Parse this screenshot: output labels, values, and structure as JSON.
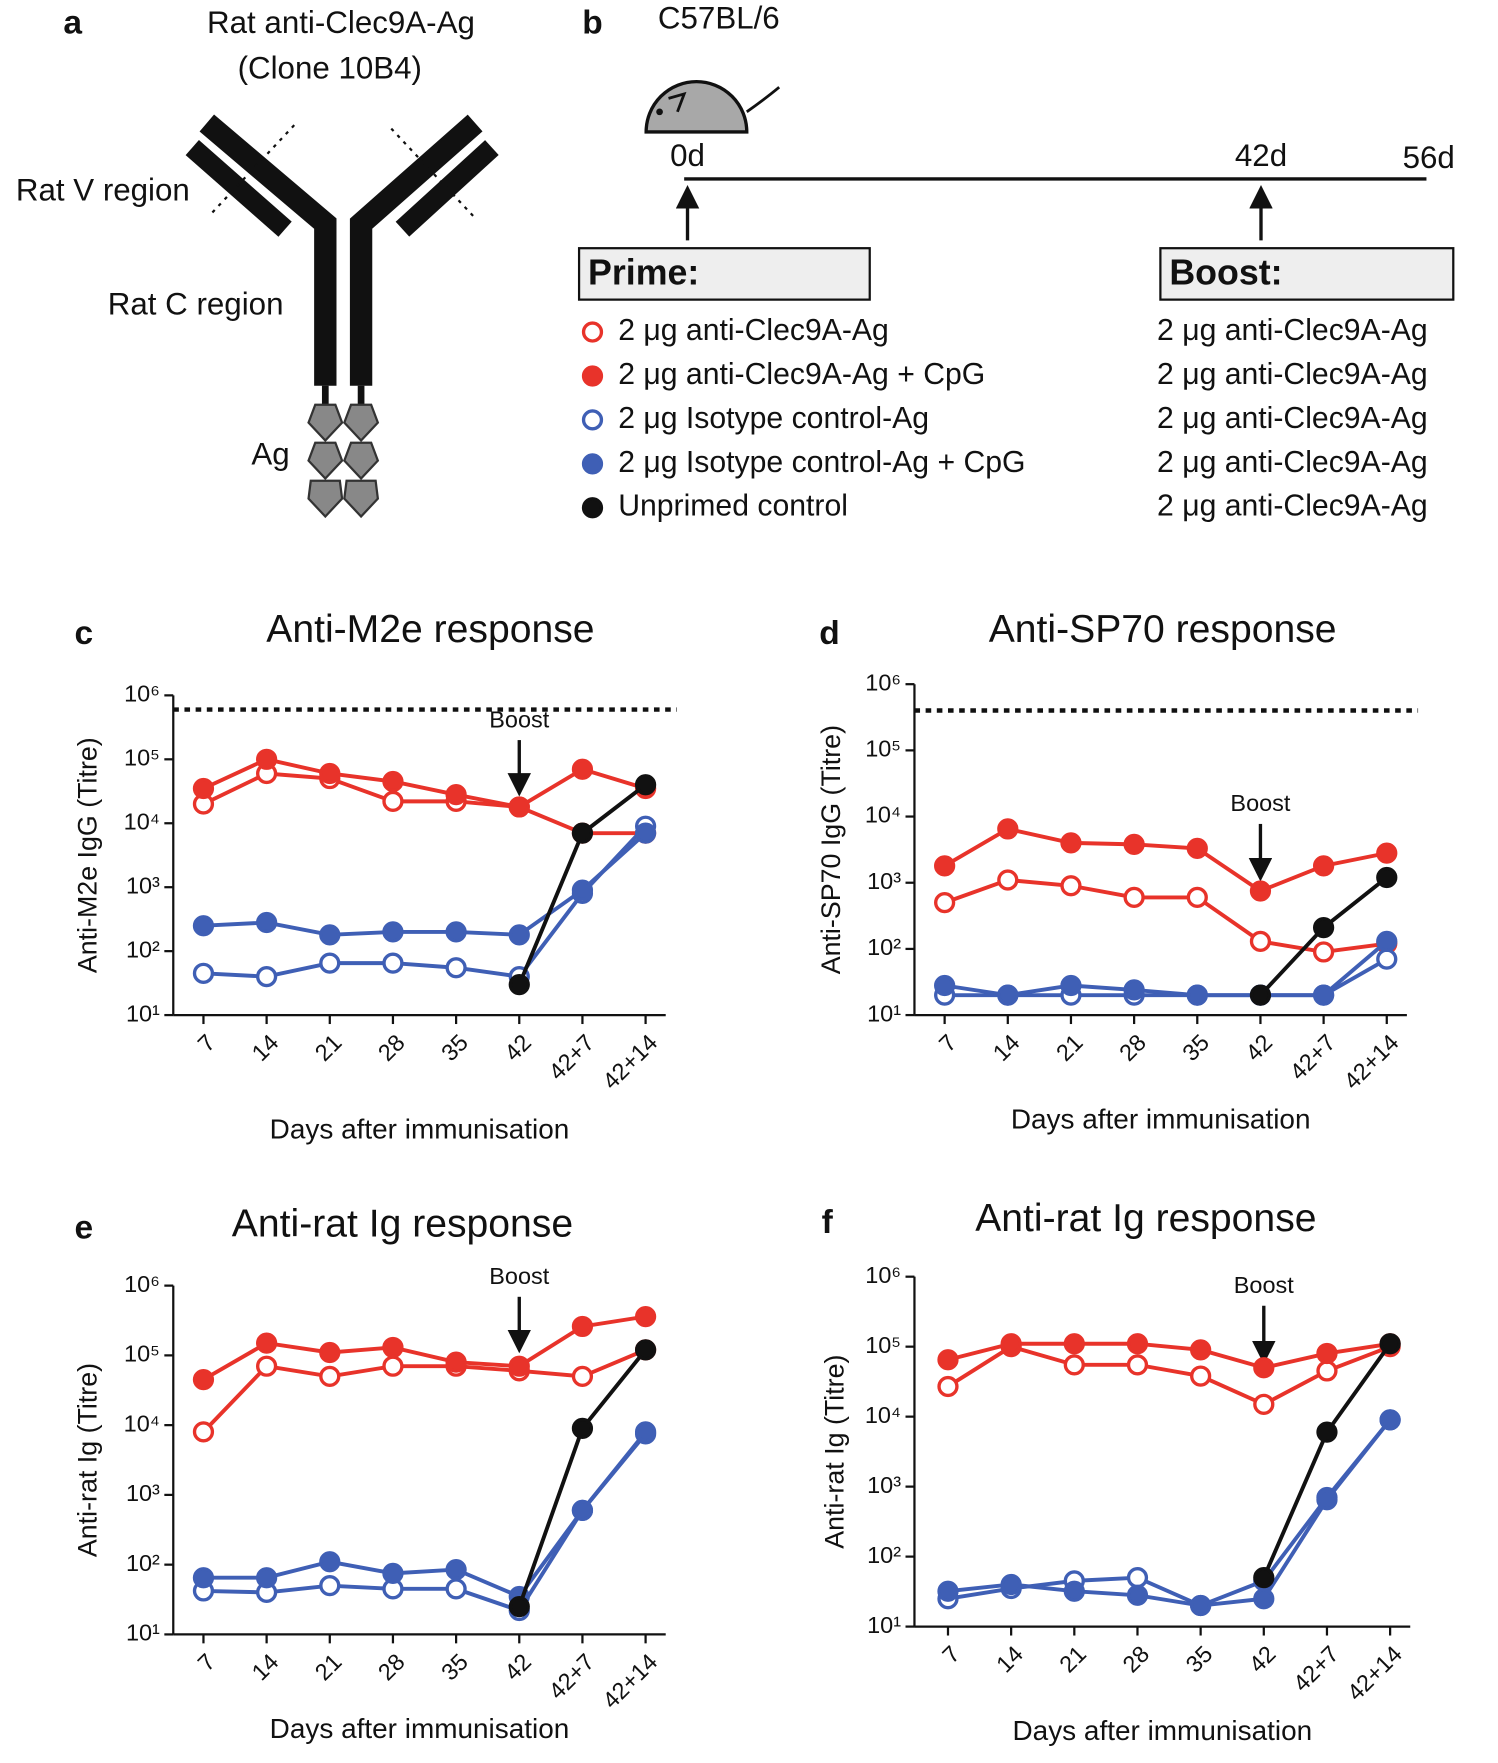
{
  "panel_a": {
    "label": "a",
    "title": "Rat anti-Clec9A-Ag",
    "subtitle": "(Clone 10B4)",
    "v_region": "Rat V region",
    "c_region": "Rat C region",
    "antigen": "Ag"
  },
  "panel_b": {
    "label": "b",
    "strain": "C57BL/6",
    "timepoints": [
      "0d",
      "42d",
      "56d"
    ],
    "prime": "Prime:",
    "boost": "Boost:",
    "legend": [
      {
        "name": "2 μg anti-Clec9A-Ag",
        "color": "#e8332a",
        "filled": false
      },
      {
        "name": "2 μg anti-Clec9A-Ag + CpG",
        "color": "#e8332a",
        "filled": true
      },
      {
        "name": "2 μg Isotype control-Ag",
        "color": "#3f5fb5",
        "filled": false
      },
      {
        "name": "2 μg Isotype control-Ag + CpG",
        "color": "#3f5fb5",
        "filled": true
      },
      {
        "name": "Unprimed control",
        "color": "#111111",
        "filled": true
      }
    ],
    "boost_items": [
      "2 μg anti-Clec9A-Ag",
      "2 μg anti-Clec9A-Ag",
      "2 μg anti-Clec9A-Ag",
      "2 μg anti-Clec9A-Ag",
      "2 μg anti-Clec9A-Ag"
    ]
  },
  "chart_data": [
    {
      "type": "line",
      "label": "c",
      "title": "Anti-M2e response",
      "xlabel": "Days after immunisation",
      "ylabel": "Anti-M2e IgG  (Titre)",
      "yscale": "log",
      "ylim": [
        10,
        1000000
      ],
      "yticks": [
        {
          "value": 10,
          "label": "10¹"
        },
        {
          "value": 100,
          "label": "10²"
        },
        {
          "value": 1000,
          "label": "10³"
        },
        {
          "value": 10000,
          "label": "10⁴"
        },
        {
          "value": 100000,
          "label": "10⁵"
        },
        {
          "value": 1000000,
          "label": "10⁶"
        }
      ],
      "categories": [
        "7",
        "14",
        "21",
        "28",
        "35",
        "42",
        "42+7",
        "42+14"
      ],
      "reference_line": 600000,
      "annotation": {
        "text": "Boost",
        "x": "42"
      },
      "series": [
        {
          "color": "#e8332a",
          "filled": false,
          "values": [
            20000,
            60000,
            50000,
            22000,
            22000,
            18000,
            7000,
            7000
          ]
        },
        {
          "color": "#e8332a",
          "filled": true,
          "values": [
            35000,
            100000,
            60000,
            45000,
            28000,
            18000,
            70000,
            35000
          ]
        },
        {
          "color": "#3f5fb5",
          "filled": false,
          "values": [
            45,
            40,
            65,
            65,
            55,
            40,
            800,
            9000
          ]
        },
        {
          "color": "#3f5fb5",
          "filled": true,
          "values": [
            250,
            280,
            180,
            200,
            200,
            180,
            900,
            7000
          ]
        },
        {
          "color": "#111111",
          "filled": true,
          "values": [
            null,
            null,
            null,
            null,
            null,
            30,
            7000,
            40000
          ]
        }
      ]
    },
    {
      "type": "line",
      "label": "d",
      "title": "Anti-SP70 response",
      "xlabel": "Days after immunisation",
      "ylabel": "Anti-SP70 IgG (Titre)",
      "yscale": "log",
      "ylim": [
        10,
        1000000
      ],
      "yticks": [
        {
          "value": 10,
          "label": "10¹"
        },
        {
          "value": 100,
          "label": "10²"
        },
        {
          "value": 1000,
          "label": "10³"
        },
        {
          "value": 10000,
          "label": "10⁴"
        },
        {
          "value": 100000,
          "label": "10⁵"
        },
        {
          "value": 1000000,
          "label": "10⁶"
        }
      ],
      "categories": [
        "7",
        "14",
        "21",
        "28",
        "35",
        "42",
        "42+7",
        "42+14"
      ],
      "reference_line": 400000,
      "annotation": {
        "text": "Boost",
        "x": "42"
      },
      "series": [
        {
          "color": "#e8332a",
          "filled": false,
          "values": [
            500,
            1100,
            900,
            600,
            600,
            130,
            90,
            120
          ]
        },
        {
          "color": "#e8332a",
          "filled": true,
          "values": [
            1800,
            6500,
            4000,
            3800,
            3300,
            750,
            1800,
            2800
          ]
        },
        {
          "color": "#3f5fb5",
          "filled": false,
          "values": [
            20,
            20,
            20,
            20,
            20,
            20,
            20,
            70
          ]
        },
        {
          "color": "#3f5fb5",
          "filled": true,
          "values": [
            28,
            20,
            28,
            24,
            20,
            20,
            20,
            130
          ]
        },
        {
          "color": "#111111",
          "filled": true,
          "values": [
            null,
            null,
            null,
            null,
            null,
            20,
            210,
            1200
          ]
        }
      ]
    },
    {
      "type": "line",
      "label": "e",
      "title": "Anti-rat Ig response",
      "xlabel": "Days after immunisation",
      "ylabel": "Anti-rat Ig (Titre)",
      "yscale": "log",
      "ylim": [
        10,
        1000000
      ],
      "yticks": [
        {
          "value": 10,
          "label": "10¹"
        },
        {
          "value": 100,
          "label": "10²"
        },
        {
          "value": 1000,
          "label": "10³"
        },
        {
          "value": 10000,
          "label": "10⁴"
        },
        {
          "value": 100000,
          "label": "10⁵"
        },
        {
          "value": 1000000,
          "label": "10⁶"
        }
      ],
      "categories": [
        "7",
        "14",
        "21",
        "28",
        "35",
        "42",
        "42+7",
        "42+14"
      ],
      "annotation": {
        "text": "Boost",
        "x": "42"
      },
      "series": [
        {
          "color": "#e8332a",
          "filled": false,
          "values": [
            8000,
            70000,
            50000,
            70000,
            70000,
            60000,
            50000,
            120000
          ]
        },
        {
          "color": "#e8332a",
          "filled": true,
          "values": [
            45000,
            150000,
            110000,
            130000,
            80000,
            70000,
            260000,
            360000
          ]
        },
        {
          "color": "#3f5fb5",
          "filled": false,
          "values": [
            42,
            40,
            50,
            45,
            45,
            22,
            600,
            7500
          ]
        },
        {
          "color": "#3f5fb5",
          "filled": true,
          "values": [
            65,
            65,
            110,
            75,
            85,
            35,
            600,
            8000
          ]
        },
        {
          "color": "#111111",
          "filled": true,
          "values": [
            null,
            null,
            null,
            null,
            null,
            25,
            9000,
            120000
          ]
        }
      ]
    },
    {
      "type": "line",
      "label": "f",
      "title": "Anti-rat Ig response",
      "xlabel": "Days after immunisation",
      "ylabel": "Anti-rat Ig (Titre)",
      "yscale": "log",
      "ylim": [
        10,
        1000000
      ],
      "yticks": [
        {
          "value": 10,
          "label": "10¹"
        },
        {
          "value": 100,
          "label": "10²"
        },
        {
          "value": 1000,
          "label": "10³"
        },
        {
          "value": 10000,
          "label": "10⁴"
        },
        {
          "value": 100000,
          "label": "10⁵"
        },
        {
          "value": 1000000,
          "label": "10⁶"
        }
      ],
      "categories": [
        "7",
        "14",
        "21",
        "28",
        "35",
        "42",
        "42+7",
        "42+14"
      ],
      "annotation": {
        "text": "Boost",
        "x": "42"
      },
      "series": [
        {
          "color": "#e8332a",
          "filled": false,
          "values": [
            27000,
            100000,
            55000,
            55000,
            38000,
            15000,
            45000,
            100000
          ]
        },
        {
          "color": "#e8332a",
          "filled": true,
          "values": [
            65000,
            110000,
            110000,
            110000,
            90000,
            50000,
            80000,
            110000
          ]
        },
        {
          "color": "#3f5fb5",
          "filled": false,
          "values": [
            25,
            35,
            45,
            50,
            20,
            45,
            700,
            9000
          ]
        },
        {
          "color": "#3f5fb5",
          "filled": true,
          "values": [
            32,
            40,
            32,
            28,
            20,
            25,
            650,
            9000
          ]
        },
        {
          "color": "#111111",
          "filled": true,
          "values": [
            null,
            null,
            null,
            null,
            null,
            50,
            6000,
            110000
          ]
        }
      ]
    }
  ]
}
